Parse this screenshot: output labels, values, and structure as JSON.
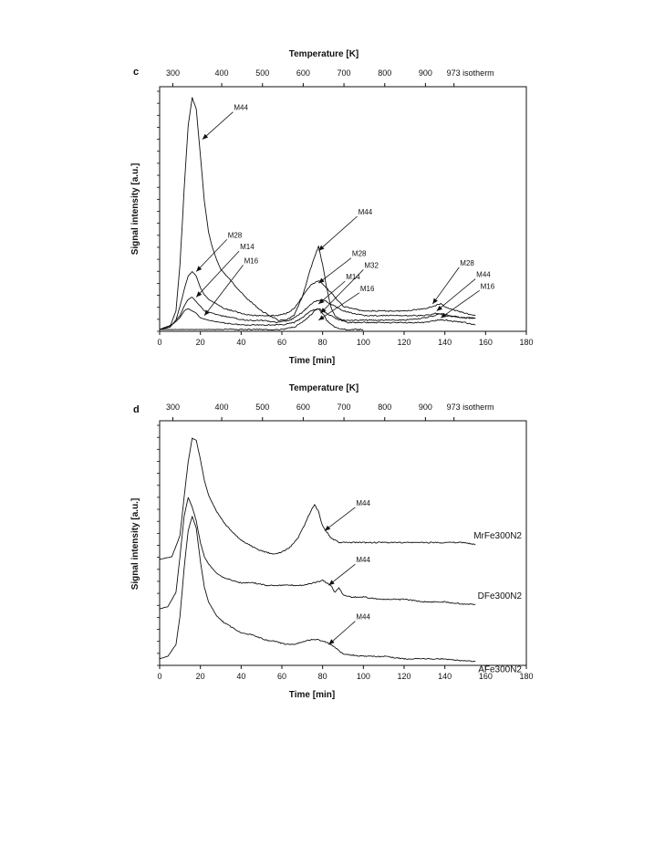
{
  "chart_data": [
    {
      "panel_label": "c",
      "type": "line",
      "xlabel": "Time [min]",
      "ylabel": "Signal intensity [a.u.]",
      "top_axis_title": "Temperature [K]",
      "top_ticks": [
        {
          "label": "300",
          "time": 2
        },
        {
          "label": "400",
          "time": 26
        },
        {
          "label": "500",
          "time": 46
        },
        {
          "label": "600",
          "time": 66
        },
        {
          "label": "700",
          "time": 86
        },
        {
          "label": "800",
          "time": 106
        },
        {
          "label": "900",
          "time": 126
        },
        {
          "label": "973 isotherm",
          "time": 140
        }
      ],
      "xlim": [
        0,
        180
      ],
      "xticks": [
        0,
        20,
        40,
        60,
        80,
        100,
        120,
        140,
        160,
        180
      ],
      "ylim": [
        0,
        100
      ],
      "series": [
        {
          "x": [
            0,
            5,
            8,
            10,
            12,
            14,
            16,
            18,
            20,
            22,
            24,
            26,
            28,
            30,
            34,
            38,
            42,
            46,
            50,
            54,
            58,
            62,
            66,
            70,
            72,
            74,
            76,
            78,
            80,
            82,
            84,
            86,
            90,
            95,
            100,
            110,
            120,
            130,
            135,
            138,
            142,
            150,
            155
          ],
          "y": [
            0,
            1,
            8,
            28,
            60,
            88,
            100,
            95,
            75,
            55,
            42,
            35,
            30,
            26,
            22,
            18,
            14,
            11,
            8,
            6,
            4,
            4,
            6,
            14,
            20,
            26,
            31,
            36,
            28,
            18,
            10,
            6,
            4,
            4,
            4,
            4,
            4,
            5,
            6,
            7,
            6,
            5,
            5
          ]
        },
        {
          "x": [
            0,
            5,
            8,
            10,
            12,
            14,
            16,
            18,
            20,
            22,
            24,
            28,
            32,
            36,
            40,
            46,
            52,
            58,
            62,
            66,
            70,
            74,
            78,
            82,
            86,
            90,
            100,
            110,
            120,
            130,
            134,
            138,
            142,
            150,
            155
          ],
          "y": [
            0,
            1,
            4,
            10,
            17,
            23,
            25,
            23,
            18,
            15,
            13,
            11,
            9,
            8,
            7,
            6,
            6,
            6,
            7,
            9,
            14,
            19,
            21,
            18,
            14,
            10,
            8,
            8,
            8,
            9,
            10,
            11,
            9,
            7,
            6
          ]
        },
        {
          "x": [
            0,
            6,
            10,
            12,
            14,
            16,
            18,
            20,
            22,
            26,
            30,
            36,
            42,
            50,
            58,
            64,
            68,
            72,
            76,
            80,
            84,
            90,
            100,
            110,
            120,
            130,
            136,
            140,
            150,
            155
          ],
          "y": [
            0,
            2,
            6,
            10,
            13,
            14,
            12,
            10,
            8,
            7,
            6,
            5,
            4,
            4,
            3,
            4,
            6,
            9,
            12,
            13,
            11,
            8,
            6,
            6,
            6,
            6,
            7,
            6,
            5,
            5
          ]
        },
        {
          "x": [
            0,
            6,
            10,
            12,
            14,
            16,
            18,
            20,
            24,
            30,
            40,
            50,
            60,
            66,
            70,
            74,
            78,
            82,
            86,
            92,
            100,
            110,
            120,
            130,
            136,
            140,
            150,
            155
          ],
          "y": [
            0,
            2,
            5,
            8,
            9,
            8,
            7,
            5,
            4,
            3,
            2,
            2,
            2,
            3,
            5,
            8,
            9,
            7,
            5,
            3,
            3,
            3,
            3,
            3,
            4,
            4,
            3,
            2
          ]
        },
        {
          "x": [
            0,
            60,
            66,
            70,
            74,
            76,
            78,
            80,
            82,
            86,
            90,
            100
          ],
          "y": [
            0,
            0,
            1,
            3,
            6,
            8,
            9,
            7,
            4,
            1,
            0,
            0
          ]
        }
      ],
      "annotations": [
        {
          "label": "M44",
          "tip_time": 21,
          "tip_value": 82,
          "label_time": 36,
          "label_value": 95
        },
        {
          "label": "M28",
          "tip_time": 18,
          "tip_value": 25,
          "label_time": 33,
          "label_value": 40
        },
        {
          "label": "M14",
          "tip_time": 18,
          "tip_value": 14,
          "label_time": 39,
          "label_value": 35
        },
        {
          "label": "M16",
          "tip_time": 22,
          "tip_value": 6,
          "label_time": 41,
          "label_value": 29
        },
        {
          "label": "M44",
          "tip_time": 78,
          "tip_value": 34,
          "label_time": 97,
          "label_value": 50
        },
        {
          "label": "M28",
          "tip_time": 78,
          "tip_value": 20,
          "label_time": 94,
          "label_value": 32
        },
        {
          "label": "M32",
          "tip_time": 79,
          "tip_value": 7,
          "label_time": 100,
          "label_value": 27
        },
        {
          "label": "M14",
          "tip_time": 78,
          "tip_value": 11,
          "label_time": 91,
          "label_value": 22
        },
        {
          "label": "M16",
          "tip_time": 78,
          "tip_value": 4,
          "label_time": 98,
          "label_value": 17
        },
        {
          "label": "M28",
          "tip_time": 134,
          "tip_value": 11,
          "label_time": 147,
          "label_value": 28
        },
        {
          "label": "M44",
          "tip_time": 136,
          "tip_value": 8,
          "label_time": 155,
          "label_value": 23
        },
        {
          "label": "M16",
          "tip_time": 138,
          "tip_value": 5,
          "label_time": 157,
          "label_value": 18
        }
      ]
    },
    {
      "panel_label": "d",
      "type": "line",
      "xlabel": "Time [min]",
      "ylabel": "Signal intensity [a.u.]",
      "top_axis_title": "Temperature [K]",
      "top_ticks": [
        {
          "label": "300",
          "time": 2
        },
        {
          "label": "400",
          "time": 26
        },
        {
          "label": "500",
          "time": 46
        },
        {
          "label": "600",
          "time": 66
        },
        {
          "label": "700",
          "time": 86
        },
        {
          "label": "800",
          "time": 106
        },
        {
          "label": "900",
          "time": 126
        },
        {
          "label": "973 isotherm",
          "time": 140
        }
      ],
      "xlim": [
        0,
        180
      ],
      "xticks": [
        0,
        20,
        40,
        60,
        80,
        100,
        120,
        140,
        160,
        180
      ],
      "ylim": [
        0,
        100
      ],
      "series": [
        {
          "name": "MrFe300N2",
          "x": [
            0,
            6,
            10,
            12,
            14,
            16,
            18,
            20,
            22,
            24,
            28,
            32,
            36,
            40,
            44,
            48,
            52,
            56,
            60,
            64,
            68,
            72,
            74,
            76,
            78,
            80,
            84,
            88,
            92,
            100,
            110,
            120,
            130,
            140,
            150,
            155
          ],
          "y": [
            44,
            45,
            54,
            70,
            85,
            95,
            94,
            86,
            77,
            71,
            64,
            59,
            55,
            52,
            50,
            48,
            47,
            46,
            47,
            49,
            53,
            60,
            64,
            67,
            64,
            58,
            53,
            51,
            51,
            51,
            51,
            51,
            51,
            51,
            51,
            50
          ]
        },
        {
          "name": "DFe300N2",
          "x": [
            0,
            4,
            8,
            10,
            12,
            14,
            16,
            18,
            20,
            22,
            24,
            28,
            32,
            36,
            40,
            46,
            52,
            58,
            64,
            70,
            76,
            80,
            84,
            86,
            88,
            90,
            94,
            100,
            110,
            120,
            130,
            140,
            150,
            155
          ],
          "y": [
            23,
            24,
            30,
            45,
            62,
            70,
            66,
            60,
            51,
            45,
            42,
            38,
            36,
            35,
            34,
            34,
            33,
            33,
            33,
            33,
            34,
            35,
            33,
            30,
            32,
            29,
            28,
            28,
            27,
            27,
            26,
            26,
            25,
            25
          ]
        },
        {
          "name": "AFe300N2",
          "x": [
            0,
            4,
            8,
            10,
            12,
            14,
            16,
            18,
            20,
            22,
            24,
            28,
            32,
            36,
            40,
            46,
            52,
            58,
            62,
            66,
            70,
            74,
            78,
            82,
            86,
            90,
            100,
            110,
            120,
            130,
            140,
            150,
            155
          ],
          "y": [
            2,
            3,
            8,
            20,
            40,
            56,
            62,
            57,
            43,
            32,
            26,
            20,
            17,
            15,
            13,
            12,
            10,
            9,
            8,
            8,
            9,
            10,
            10,
            9,
            7,
            4,
            3,
            3,
            2,
            2,
            2,
            1,
            1
          ]
        }
      ],
      "annotations": [
        {
          "label": "M44",
          "tip_time": 81,
          "tip_value": 56,
          "label_time": 96,
          "label_value": 67
        },
        {
          "label": "M44",
          "tip_time": 83,
          "tip_value": 33,
          "label_time": 96,
          "label_value": 43
        },
        {
          "label": "M44",
          "tip_time": 83,
          "tip_value": 8,
          "label_time": 96,
          "label_value": 19
        }
      ]
    }
  ]
}
